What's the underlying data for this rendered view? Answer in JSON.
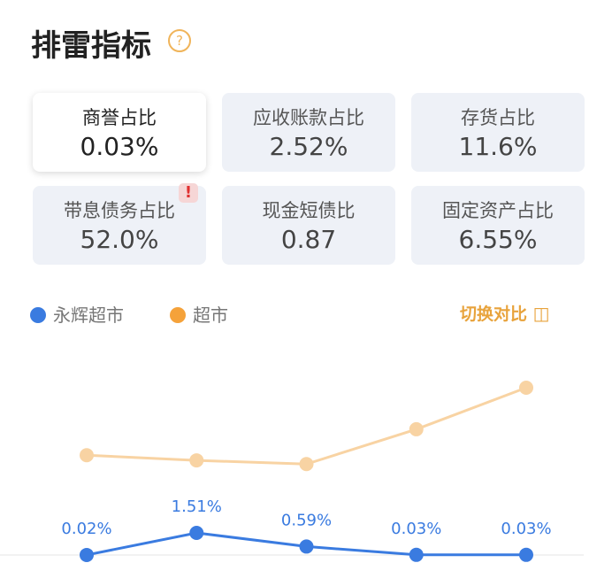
{
  "header": {
    "title": "排雷指标"
  },
  "cards": [
    {
      "label": "商誉占比",
      "value": "0.03%"
    },
    {
      "label": "应收账款占比",
      "value": "2.52%"
    },
    {
      "label": "存货占比",
      "value": "11.6%"
    },
    {
      "label": "带息债务占比",
      "value": "52.0%"
    },
    {
      "label": "现金短债比",
      "value": "0.87"
    },
    {
      "label": "固定资产占比",
      "value": "6.55%"
    }
  ],
  "switch": "切换对比",
  "chart_data": {
    "type": "line",
    "categories": [
      null,
      null,
      null,
      null,
      null
    ],
    "series": [
      {
        "name": "永辉超市",
        "color": "#3a7be0",
        "values": [
          0.02,
          1.51,
          0.59,
          0.03,
          0.03
        ],
        "value_labels": [
          "0.02%",
          "1.51%",
          "0.59%",
          "0.03%",
          "0.03%"
        ]
      },
      {
        "name": "超市",
        "color": "#f8d3a3",
        "values": [
          6.75,
          6.4,
          6.15,
          8.5,
          11.3
        ]
      }
    ]
  }
}
